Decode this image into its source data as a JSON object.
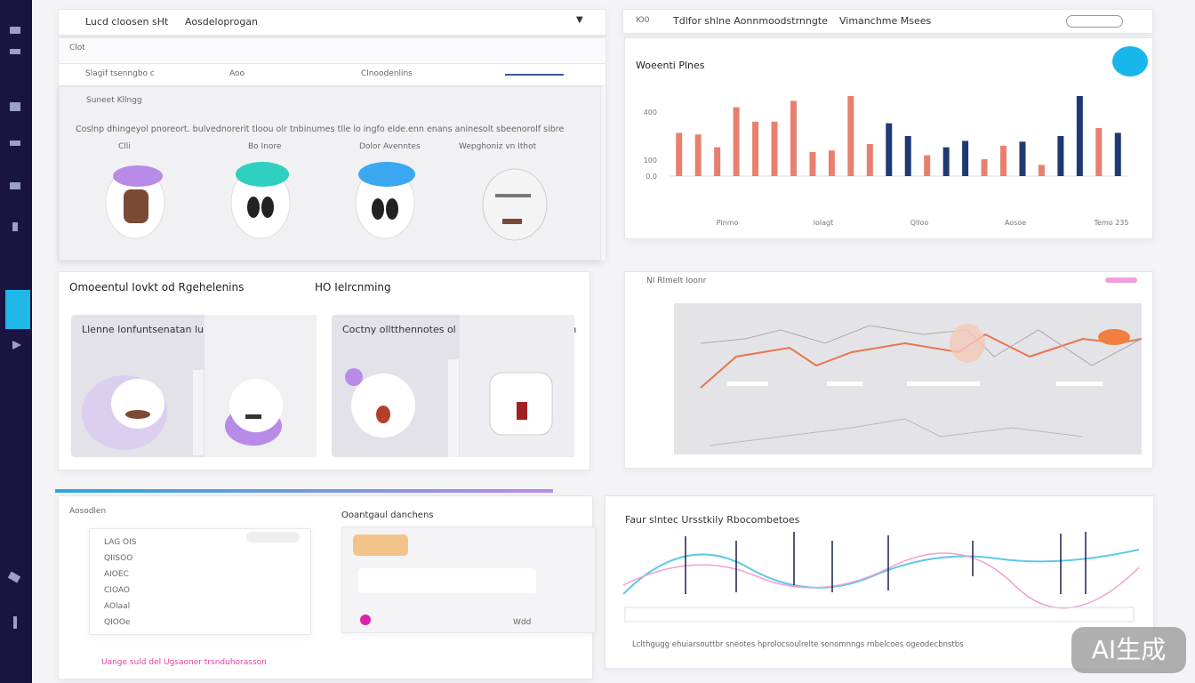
{
  "header": {
    "left_title": "Lucd cloosen sHt",
    "left_subtitle": "Aosdeloprogan",
    "right_code": "Ю0",
    "right_title": "Tdlfor shlne Aonnmoodstrnngte",
    "right_subtitle": "Vimanchme Msees"
  },
  "top_left": {
    "tab": "Clot",
    "row_left": "Slagif tsenngbo c",
    "row_mid": "Aoo",
    "row_right": "Clnoodenlins",
    "card_title": "Suneet Kllngg",
    "description": "Coslnp dhingeyol pnoreort. bulvednorerit tloou olr tnbinumes tlle lo ingfo elde.enn enans aninesolt sbeenorolf sibre",
    "items": [
      "Clli",
      "Bo Inore",
      "Dolor Avenntes",
      "Wepghoniz vn Ithot"
    ]
  },
  "bar_chart": {
    "type": "bar",
    "title": "Woeenti Plnes",
    "values": [
      270,
      260,
      180,
      430,
      340,
      340,
      470,
      150,
      160,
      500,
      200,
      330,
      250,
      130,
      180,
      220,
      105,
      190,
      215,
      70,
      250,
      500,
      300,
      270
    ],
    "colors": [
      "#e8806f",
      "#e8806f",
      "#e8806f",
      "#e8806f",
      "#e8806f",
      "#e8806f",
      "#e8806f",
      "#e8806f",
      "#e8806f",
      "#e8806f",
      "#e8806f",
      "#1f3a73",
      "#1f3a73",
      "#e8806f",
      "#1f3a73",
      "#1f3a73",
      "#e8806f",
      "#e8806f",
      "#1f3a73",
      "#e8806f",
      "#1f3a73",
      "#1f3a73",
      "#e8806f",
      "#1f3a73"
    ],
    "ylim": [
      0,
      500
    ],
    "yticks": [
      {
        "value": 0,
        "label": "0.0"
      },
      100,
      400
    ],
    "x_labels": [
      "Plnmo",
      "lolagt",
      "Qlloo",
      "Aosoe",
      "Temo 235"
    ]
  },
  "middle_left": {
    "title": "Omoeentul Iovkt od Rgehelenins",
    "badge": "HO Ielrcnming",
    "card1": "Llenne Ionfuntsenatan lun Iou htls",
    "card2": "Coctny olltthennotes ol Ul Ustenta Rleefnoorran"
  },
  "middle_right": {
    "title": "NI Rlmelt Ioonr"
  },
  "bottom_left": {
    "title": "Aosodlen",
    "list": [
      "LAG OIS",
      "QIISOO",
      "AIOEC",
      "CIOAO",
      "AOlaal",
      "QIOOe"
    ],
    "panel_title": "Ooantgaul danchens",
    "footer_link": "Uange suld del Ugsaoner trsnduhorasson",
    "button": "Wdd"
  },
  "bottom_right": {
    "title": "Faur slntec Ursstkily Rbocombetoes",
    "footer": "Lclthgugg ehuiarsouttbr sneotes hprolocsoulrelte sonomnngs rnbelcoes ogeodecbnstbs"
  },
  "watermark": "AI生成"
}
